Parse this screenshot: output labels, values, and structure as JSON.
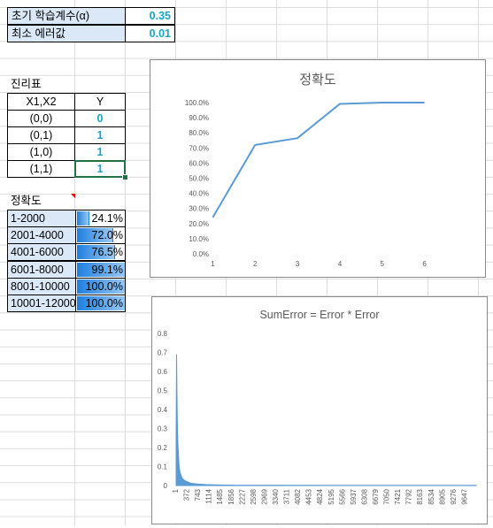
{
  "params": [
    {
      "label": "초기 학습계수(α)",
      "value": "0.35"
    },
    {
      "label": "최소 에러값",
      "value": "0.01"
    }
  ],
  "truth_table": {
    "title": "진리표",
    "headers": [
      "X1,X2",
      "Y"
    ],
    "rows": [
      {
        "input": "(0,0)",
        "output": "0"
      },
      {
        "input": "(0,1)",
        "output": "1"
      },
      {
        "input": "(1,0)",
        "output": "1"
      },
      {
        "input": "(1,1)",
        "output": "1"
      }
    ]
  },
  "accuracy_table": {
    "title": "정확도",
    "rows": [
      {
        "range": "1-2000",
        "value": "24.1%",
        "fraction": 0.241
      },
      {
        "range": "2001-4000",
        "value": "72.0%",
        "fraction": 0.72
      },
      {
        "range": "4001-6000",
        "value": "76.5%",
        "fraction": 0.765
      },
      {
        "range": "6001-8000",
        "value": "99.1%",
        "fraction": 0.991
      },
      {
        "range": "8001-10000",
        "value": "100.0%",
        "fraction": 1.0
      },
      {
        "range": "10001-12000",
        "value": "100.0%",
        "fraction": 1.0
      }
    ]
  },
  "chart_data": [
    {
      "type": "line",
      "title": "정확도",
      "xlabel": "",
      "ylabel": "",
      "categories": [
        "1",
        "2",
        "3",
        "4",
        "5",
        "6"
      ],
      "series": [
        {
          "values": [
            24.1,
            72.0,
            76.5,
            99.1,
            100.0,
            100.0
          ]
        }
      ],
      "ylim": [
        0,
        100
      ],
      "yticks": [
        "0.0%",
        "10.0%",
        "20.0%",
        "30.0%",
        "40.0%",
        "50.0%",
        "60.0%",
        "70.0%",
        "80.0%",
        "90.0%",
        "100.0%"
      ],
      "grid": false,
      "color": "#5b9bd5"
    },
    {
      "type": "area",
      "title": "SumError = Error * Error",
      "xlabel": "",
      "ylabel": "",
      "ylim": [
        0,
        0.8
      ],
      "yticks": [
        "0",
        "0.1",
        "0.2",
        "0.3",
        "0.4",
        "0.5",
        "0.6",
        "0.7",
        "0.8"
      ],
      "xticks": [
        "1",
        "372",
        "743",
        "1114",
        "1485",
        "1856",
        "2227",
        "2598",
        "2969",
        "3340",
        "3711",
        "4082",
        "4453",
        "4824",
        "5195",
        "5566",
        "5937",
        "6308",
        "6679",
        "7050",
        "7421",
        "7792",
        "8163",
        "8534",
        "8905",
        "9276",
        "9647"
      ],
      "xlim": [
        1,
        10000
      ],
      "series": [
        {
          "x": [
            1,
            15,
            30,
            45,
            60,
            80,
            100,
            130,
            170,
            220,
            300,
            400,
            500,
            700,
            1000,
            1500,
            2000,
            3000,
            5000,
            7500,
            10000
          ],
          "values": [
            0.25,
            0.69,
            0.47,
            0.3,
            0.22,
            0.16,
            0.1,
            0.07,
            0.05,
            0.035,
            0.025,
            0.018,
            0.012,
            0.008,
            0.005,
            0.003,
            0.002,
            0.0015,
            0.001,
            0.001,
            0.001
          ]
        }
      ],
      "grid": false,
      "color": "#5b9bd5"
    }
  ]
}
